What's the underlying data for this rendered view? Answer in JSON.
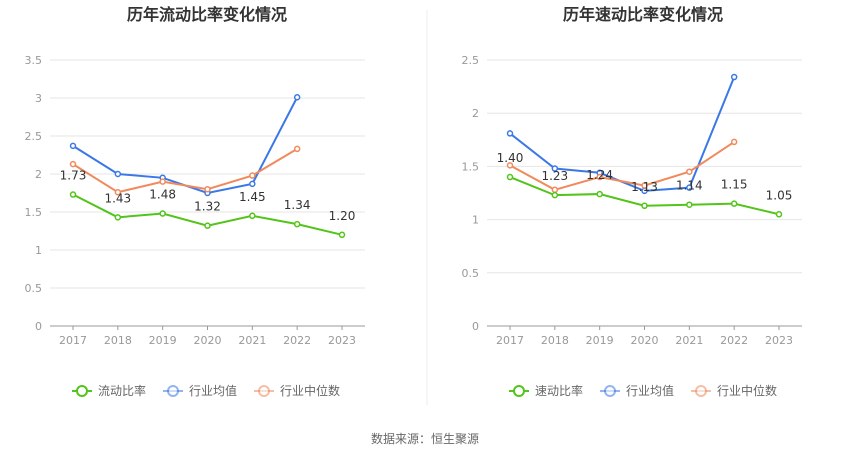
{
  "source": "数据来源：恒生聚源",
  "colors": {
    "primary": "#52c41a",
    "avg": "#3b78e7",
    "median": "#f08a5d"
  },
  "chart_data": [
    {
      "type": "line",
      "title": "历年流动比率变化情况",
      "categories": [
        "2017",
        "2018",
        "2019",
        "2020",
        "2021",
        "2022",
        "2023"
      ],
      "ylim": [
        0,
        3.5
      ],
      "yticks": [
        "0",
        "0.5",
        "1",
        "1.5",
        "2",
        "2.5",
        "3",
        "3.5"
      ],
      "series": [
        {
          "name": "流动比率",
          "values": [
            1.73,
            1.43,
            1.48,
            1.32,
            1.45,
            1.34,
            1.2
          ],
          "labels": [
            "1.73",
            "1.43",
            "1.48",
            "1.32",
            "1.45",
            "1.34",
            "1.20"
          ]
        },
        {
          "name": "行业均值",
          "values": [
            2.37,
            2.0,
            1.95,
            1.75,
            1.87,
            3.01,
            null
          ]
        },
        {
          "name": "行业中位数",
          "values": [
            2.13,
            1.76,
            1.9,
            1.8,
            1.98,
            2.33,
            null
          ]
        }
      ],
      "legend_position": "bottom"
    },
    {
      "type": "line",
      "title": "历年速动比率变化情况",
      "categories": [
        "2017",
        "2018",
        "2019",
        "2020",
        "2021",
        "2022",
        "2023"
      ],
      "ylim": [
        0,
        2.5
      ],
      "yticks": [
        "0",
        "0.5",
        "1",
        "1.5",
        "2",
        "2.5"
      ],
      "series": [
        {
          "name": "速动比率",
          "values": [
            1.4,
            1.23,
            1.24,
            1.13,
            1.14,
            1.15,
            1.05
          ],
          "labels": [
            "1.40",
            "1.23",
            "1.24",
            "1.13",
            "1.14",
            "1.15",
            "1.05"
          ]
        },
        {
          "name": "行业均值",
          "values": [
            1.81,
            1.48,
            1.44,
            1.27,
            1.3,
            2.34,
            null
          ]
        },
        {
          "name": "行业中位数",
          "values": [
            1.51,
            1.28,
            1.4,
            1.32,
            1.45,
            1.73,
            null
          ]
        }
      ],
      "legend_position": "bottom"
    }
  ]
}
